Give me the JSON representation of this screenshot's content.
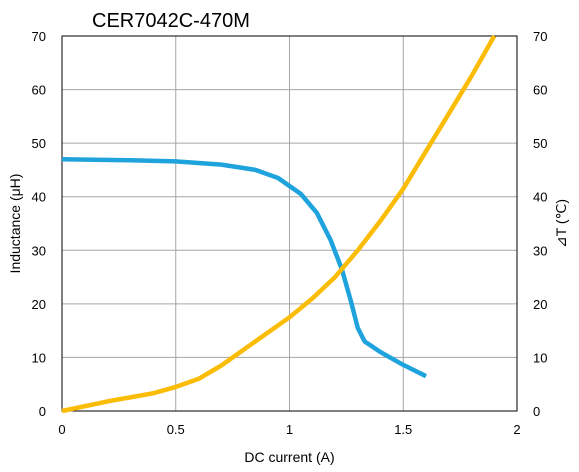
{
  "chart_data": {
    "type": "line",
    "title": "CER7042C-470M",
    "xlabel": "DC current (A)",
    "ylabel_left": "Inductance (μH)",
    "ylabel_right": "⊿T (℃)",
    "xlim": [
      0,
      2
    ],
    "ylim_left": [
      0,
      70
    ],
    "ylim_right": [
      0,
      70
    ],
    "x_ticks": [
      "0",
      "0.5",
      "1",
      "1.5",
      "2"
    ],
    "y_ticks": [
      "0",
      "10",
      "20",
      "30",
      "40",
      "50",
      "60",
      "70"
    ],
    "grid": true,
    "series": [
      {
        "axis": "left",
        "color": "#1fa3dc",
        "points": [
          [
            0,
            47
          ],
          [
            0.3,
            46.8
          ],
          [
            0.5,
            46.6
          ],
          [
            0.7,
            46
          ],
          [
            0.85,
            45
          ],
          [
            0.95,
            43.5
          ],
          [
            1.05,
            40.5
          ],
          [
            1.12,
            37
          ],
          [
            1.18,
            32
          ],
          [
            1.23,
            26.5
          ],
          [
            1.27,
            20.5
          ],
          [
            1.3,
            15.5
          ],
          [
            1.33,
            13
          ],
          [
            1.4,
            11
          ],
          [
            1.5,
            8.6
          ],
          [
            1.6,
            6.5
          ]
        ]
      },
      {
        "axis": "right",
        "color": "#fbbc05",
        "points": [
          [
            0,
            0
          ],
          [
            0.2,
            1.8
          ],
          [
            0.4,
            3.3
          ],
          [
            0.5,
            4.5
          ],
          [
            0.6,
            6
          ],
          [
            0.7,
            8.5
          ],
          [
            0.8,
            11.5
          ],
          [
            0.9,
            14.5
          ],
          [
            1.0,
            17.5
          ],
          [
            1.1,
            21
          ],
          [
            1.2,
            25
          ],
          [
            1.3,
            30
          ],
          [
            1.4,
            35.5
          ],
          [
            1.5,
            41.5
          ],
          [
            1.6,
            48.5
          ],
          [
            1.7,
            55.5
          ],
          [
            1.8,
            62.5
          ],
          [
            1.9,
            70
          ]
        ]
      }
    ]
  }
}
